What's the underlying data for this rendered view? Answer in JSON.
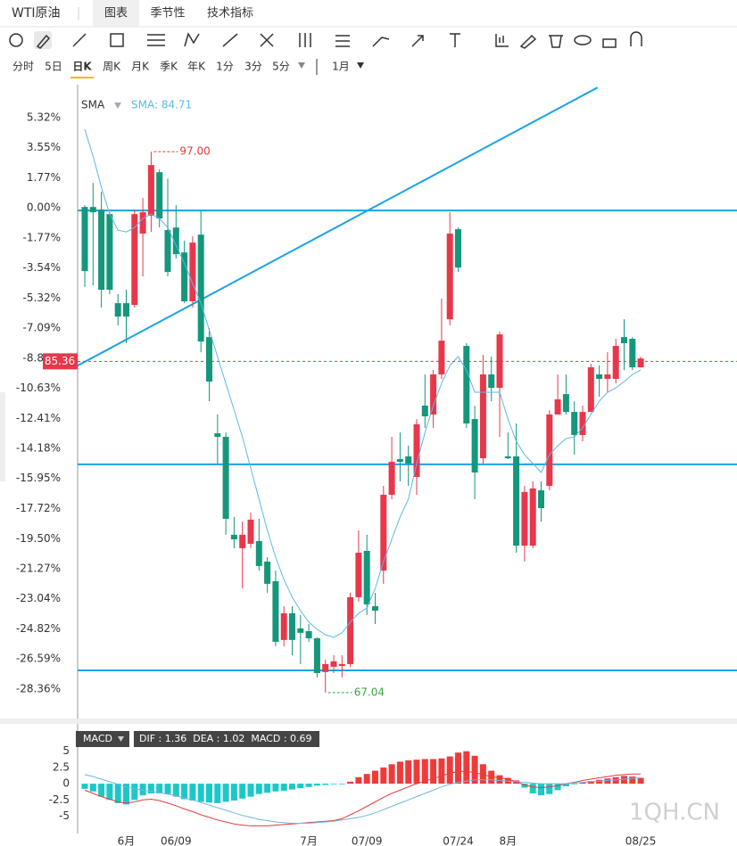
{
  "header": {
    "title": "WTI原油",
    "tabs": [
      "图表",
      "季节性",
      "技术指标"
    ]
  },
  "periods": [
    "分时",
    "5日",
    "日K",
    "周K",
    "月K",
    "季K",
    "年K",
    "1分",
    "3分",
    "5分",
    "1月"
  ],
  "watermark": "1QH.CN",
  "chart_data": [
    {
      "type": "candlestick",
      "up_color": "#e8374a",
      "down_color": "#14977a",
      "open": [
        0.05,
        0.05,
        -0.11,
        -0.37,
        -5.62,
        -5.62,
        -5.72,
        -1.52,
        -0.47,
        2.1,
        -1.31,
        -1.16,
        -2.63,
        -5.51,
        -1.58,
        -7.62,
        -13.29,
        -13.5,
        -19.27,
        -20.06,
        -19.8,
        -19.64,
        -20.85,
        -22.01,
        -25.47,
        -23.9,
        -24.79,
        -24.95,
        -25.37,
        -27.36,
        -27.05,
        -27.0,
        -26.89,
        -22.95,
        -20.22,
        -23.48,
        -21.38,
        -16.91,
        -14.81,
        -14.65,
        -15.86,
        -11.66,
        -12.18,
        -9.82,
        -6.57,
        -1.26,
        -8.14,
        -12.45,
        -14.76,
        -9.82,
        -10.61,
        -14.65,
        -14.65,
        -19.91,
        -19.91,
        -16.65,
        -16.39,
        -12.18,
        -10.98,
        -12.03,
        -13.39,
        -12.03,
        -9.82,
        -10.08,
        -10.08,
        -7.62,
        -7.72,
        -9.4
      ],
      "close": [
        -3.73,
        -0.26,
        -4.83,
        -4.83,
        -6.41,
        -6.41,
        -0.37,
        -0.26,
        2.52,
        -0.63,
        -3.78,
        -2.73,
        -5.51,
        -2.05,
        -7.88,
        -10.24,
        -13.5,
        -18.33,
        -19.54,
        -19.27,
        -18.38,
        -21.11,
        -22.16,
        -25.58,
        -23.9,
        -25.47,
        -25.05,
        -25.37,
        -27.42,
        -26.89,
        -26.73,
        -26.89,
        -22.95,
        -20.33,
        -23.37,
        -23.74,
        -16.91,
        -14.97,
        -14.97,
        -15.07,
        -12.76,
        -12.29,
        -9.82,
        -7.83,
        -1.52,
        -3.52,
        -12.71,
        -15.6,
        -9.82,
        -10.61,
        -7.46,
        -14.76,
        -19.91,
        -16.75,
        -16.54,
        -17.7,
        -12.18,
        -11.29,
        -12.03,
        -13.39,
        -12.03,
        -9.4,
        -10.08,
        -9.82,
        -8.14,
        -7.98,
        -9.4,
        -8.88
      ],
      "high": [
        0.16,
        1.47,
        0.95,
        -0.26,
        -5.09,
        -4.83,
        -0.11,
        0.58,
        3.31,
        2.26,
        1.73,
        0.16,
        -1.94,
        -1.68,
        -0.16,
        -7.09,
        -12.18,
        -13.24,
        -18.22,
        -18.49,
        -17.96,
        -18.33,
        -20.59,
        -21.38,
        -23.48,
        -23.48,
        -24.0,
        -24.53,
        -25.31,
        -26.63,
        -26.37,
        -26.37,
        -22.69,
        -19.01,
        -19.27,
        -22.69,
        -16.39,
        -13.5,
        -13.24,
        -14.02,
        -12.45,
        -9.82,
        -9.56,
        -5.36,
        -0.26,
        -1.16,
        -7.98,
        -11.66,
        -8.67,
        -8.77,
        -7.3,
        -13.24,
        -12.71,
        -16.39,
        -16.12,
        -16.12,
        -11.92,
        -9.82,
        -9.82,
        -11.4,
        -11.66,
        -9.19,
        -9.3,
        -8.51,
        -7.72,
        -6.57,
        -7.62,
        -8.77
      ],
      "low": [
        -4.67,
        -4.57,
        -5.88,
        -5.09,
        -6.93,
        -7.98,
        -5.88,
        -4.04,
        -1.42,
        -1.16,
        -4.04,
        -2.99,
        -5.62,
        -5.88,
        -8.51,
        -11.4,
        -15.07,
        -19.27,
        -20.06,
        -22.43,
        -20.06,
        -21.38,
        -22.69,
        -25.84,
        -25.84,
        -26.37,
        -26.89,
        -25.58,
        -27.68,
        -28.57,
        -27.42,
        -27.68,
        -27.05,
        -23.21,
        -24.0,
        -24.53,
        -22.16,
        -17.17,
        -16.12,
        -16.39,
        -16.91,
        -12.97,
        -12.97,
        -10.08,
        -6.93,
        -3.78,
        -12.97,
        -17.17,
        -15.07,
        -11.4,
        -13.5,
        -14.81,
        -20.33,
        -20.85,
        -20.06,
        -18.49,
        -16.65,
        -12.18,
        -12.18,
        -14.55,
        -13.76,
        -12.03,
        -11.13,
        -10.87,
        -10.35,
        -9.56,
        -9.56,
        -9.4
      ],
      "series": [
        {
          "name": "SMA",
          "color": "#5bb8e8",
          "values": [
            4.62,
            3.05,
            1.21,
            -0.37,
            -1.31,
            -1.42,
            -1.16,
            -0.63,
            -0.37,
            -0.63,
            -1.16,
            -2.21,
            -3.26,
            -4.46,
            -5.62,
            -7.2,
            -8.77,
            -10.35,
            -11.92,
            -13.5,
            -15.34,
            -17.17,
            -19.01,
            -20.59,
            -21.9,
            -22.95,
            -23.74,
            -24.42,
            -24.84,
            -25.16,
            -25.31,
            -25.05,
            -24.42,
            -23.9,
            -23.58,
            -22.43,
            -20.85,
            -19.54,
            -18.22,
            -17.17,
            -15.07,
            -13.24,
            -11.66,
            -10.35,
            -9.3,
            -8.77,
            -9.56,
            -10.87,
            -10.87,
            -10.87,
            -10.87,
            -12.45,
            -13.76,
            -14.55,
            -15.07,
            -15.6,
            -14.55,
            -14.02,
            -13.6,
            -13.5,
            -12.97,
            -12.18,
            -11.4,
            -10.87,
            -10.61,
            -10.24,
            -9.82,
            -9.56
          ]
        }
      ],
      "sma_label": "SMA: 84.71",
      "ylim": [
        -30.1,
        7.1
      ],
      "yticks": [
        {
          "value": 5.32,
          "label": "5.32%"
        },
        {
          "value": 3.55,
          "label": "3.55%"
        },
        {
          "value": 1.77,
          "label": "1.77%"
        },
        {
          "value": 0,
          "label": "0.00%"
        },
        {
          "value": -1.77,
          "label": "-1.77%"
        },
        {
          "value": -3.54,
          "label": "-3.54%"
        },
        {
          "value": -5.32,
          "label": "-5.32%"
        },
        {
          "value": -7.09,
          "label": "-7.09%"
        },
        {
          "value": -8.86,
          "label": "-8.86%"
        },
        {
          "value": -10.63,
          "label": "-10.63%"
        },
        {
          "value": -12.41,
          "label": "-12.41%"
        },
        {
          "value": -14.18,
          "label": "-14.18%"
        },
        {
          "value": -15.95,
          "label": "-15.95%"
        },
        {
          "value": -17.72,
          "label": "-17.72%"
        },
        {
          "value": -19.5,
          "label": "-19.50%"
        },
        {
          "value": -21.27,
          "label": "-21.27%"
        },
        {
          "value": -23.04,
          "label": "-23.04%"
        },
        {
          "value": -24.82,
          "label": "-24.82%"
        },
        {
          "value": -26.59,
          "label": "-26.59%"
        },
        {
          "value": -28.36,
          "label": "-28.36%"
        }
      ],
      "hlines": [
        -0.16,
        -15.12,
        -27.26
      ],
      "line_color": "#1aa3e8",
      "trendline": {
        "x": [
          -0.86,
          61.8
        ],
        "y": [
          -9.3,
          7.09
        ]
      },
      "annotations": [
        {
          "label": "97.00",
          "index": 8,
          "value": 3.31,
          "color": "#e23c3c"
        },
        {
          "label": "67.04",
          "index": 29,
          "value": -28.57,
          "color": "#3aa345"
        }
      ],
      "last_price": {
        "label": "85.36",
        "value": -9.05,
        "color": "#e8374a"
      }
    },
    {
      "type": "macd",
      "title": "MACD",
      "legend": "DIF : 1.36  DEA : 1.02  MACD : 0.69",
      "categories": [
        null,
        null,
        null,
        null,
        null,
        "6月",
        null,
        null,
        null,
        null,
        null,
        "06/09",
        null,
        null,
        null,
        null,
        null,
        null,
        null,
        null,
        null,
        null,
        null,
        null,
        null,
        null,
        null,
        "7月",
        null,
        null,
        null,
        null,
        null,
        null,
        "07/09",
        null,
        null,
        null,
        null,
        null,
        null,
        null,
        null,
        null,
        null,
        "07/24",
        null,
        null,
        null,
        null,
        null,
        "8月",
        null,
        null,
        null,
        null,
        null,
        null,
        null,
        null,
        null,
        null,
        null,
        null,
        null,
        null,
        null,
        "08/25"
      ],
      "up_color": "#f03a3a",
      "down_color": "#1bc8c8",
      "values": [
        -0.8,
        -1.2,
        -2.0,
        -2.5,
        -3.0,
        -3.2,
        -2.5,
        -1.8,
        -1.5,
        -1.5,
        -1.6,
        -2.0,
        -2.4,
        -2.6,
        -2.8,
        -2.9,
        -3.0,
        -2.8,
        -2.6,
        -2.3,
        -2.0,
        -1.6,
        -1.4,
        -1.2,
        -1.1,
        -0.9,
        -0.7,
        -0.5,
        -0.3,
        -0.2,
        -0.1,
        -0.1,
        0.3,
        1.0,
        1.5,
        2.0,
        2.5,
        3.0,
        3.4,
        3.6,
        3.7,
        3.8,
        3.8,
        3.9,
        4.2,
        4.8,
        5.0,
        4.3,
        3.0,
        2.0,
        1.3,
        0.9,
        0.5,
        -0.6,
        -1.5,
        -1.8,
        -1.6,
        -1.0,
        -0.4,
        -0.1,
        0.2,
        0.4,
        0.6,
        0.8,
        1.0,
        1.2,
        1.1,
        0.9
      ],
      "series": [
        {
          "name": "DIF",
          "color": "#e23c3c",
          "values": [
            -1.0,
            -1.5,
            -2.0,
            -2.4,
            -2.8,
            -3.0,
            -2.8,
            -2.5,
            -2.4,
            -2.6,
            -3.0,
            -3.4,
            -3.9,
            -4.3,
            -4.8,
            -5.2,
            -5.6,
            -5.9,
            -6.2,
            -6.4,
            -6.5,
            -6.5,
            -6.5,
            -6.4,
            -6.3,
            -6.2,
            -6.1,
            -6.0,
            -5.9,
            -5.8,
            -5.7,
            -5.4,
            -4.8,
            -4.2,
            -3.5,
            -2.8,
            -2.1,
            -1.5,
            -1.0,
            -0.5,
            0.0,
            0.4,
            0.8,
            1.2,
            1.6,
            1.9,
            1.9,
            1.7,
            1.4,
            1.1,
            0.9,
            0.7,
            0.3,
            -0.2,
            -0.5,
            -0.6,
            -0.5,
            -0.3,
            0.0,
            0.2,
            0.5,
            0.7,
            0.9,
            1.1,
            1.3,
            1.4,
            1.5,
            1.5
          ]
        },
        {
          "name": "DEA",
          "color": "#6fb6e6",
          "values": [
            1.4,
            1.1,
            0.7,
            0.3,
            -0.1,
            -0.5,
            -0.8,
            -1.0,
            -1.2,
            -1.4,
            -1.6,
            -1.9,
            -2.2,
            -2.5,
            -2.9,
            -3.3,
            -3.7,
            -4.1,
            -4.5,
            -4.9,
            -5.2,
            -5.5,
            -5.7,
            -5.9,
            -6.0,
            -6.1,
            -6.1,
            -6.1,
            -6.0,
            -5.9,
            -5.8,
            -5.6,
            -5.4,
            -5.2,
            -4.9,
            -4.5,
            -4.0,
            -3.5,
            -3.0,
            -2.5,
            -2.0,
            -1.5,
            -1.0,
            -0.5,
            -0.1,
            0.2,
            0.4,
            0.6,
            0.6,
            0.6,
            0.5,
            0.4,
            0.3,
            0.2,
            0.1,
            0.0,
            0.0,
            0.0,
            0.0,
            0.1,
            0.2,
            0.3,
            0.4,
            0.5,
            0.6,
            0.7,
            0.8,
            0.9
          ]
        }
      ],
      "ylim": [
        -7,
        6.2
      ],
      "yticks": [
        5,
        2.5,
        0,
        -2.5,
        -5
      ]
    }
  ]
}
